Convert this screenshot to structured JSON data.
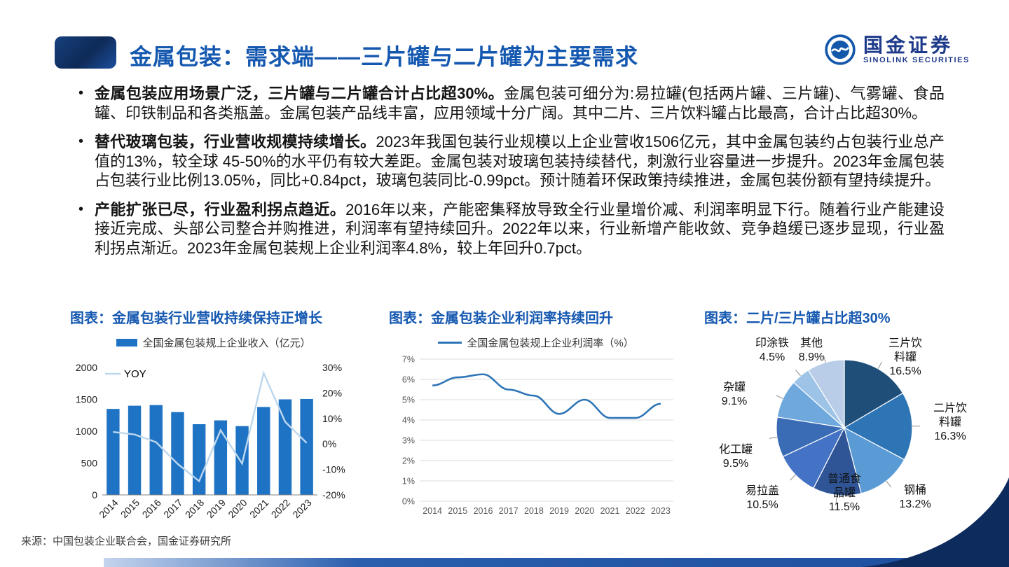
{
  "header": {
    "title": "金属包装：需求端——三片罐与二片罐为主要需求",
    "logo_text": "国金证券",
    "logo_subtext": "SINOLINK SECURITIES"
  },
  "colors": {
    "title_blue": "#1558B0",
    "logo_navy": "#1E3A8A",
    "bar_blue": "#1E73C4",
    "yoy_line": "#BDD7EE",
    "profit_line": "#2E75B6",
    "footer_navy": "#0E2B5D"
  },
  "bullets": [
    {
      "bold": "金属包装应用场景广泛，三片罐与二片罐合计占比超30%。",
      "text": "金属包装可细分为:易拉罐(包括两片罐、三片罐)、气雾罐、食品罐、印铁制品和各类瓶盖。金属包装产品线丰富，应用领域十分广阔。其中二片、三片饮料罐占比最高，合计占比超30%。"
    },
    {
      "bold": "替代玻璃包装，行业营收规模持续增长。",
      "text": "2023年我国包装行业规模以上企业营收1506亿元，其中金属包装约占包装行业总产值的13%，较全球 45-50%的水平仍有较大差距。金属包装对玻璃包装持续替代，刺激行业容量进一步提升。2023年金属包装占包装行业比例13.05%，同比+0.84pct，玻璃包装同比-0.99pct。预计随着环保政策持续推进，金属包装份额有望持续提升。"
    },
    {
      "bold": "产能扩张已尽，行业盈利拐点趋近。",
      "text": "2016年以来，产能密集释放导致全行业量增价减、利润率明显下行。随着行业产能建设接近完成、头部公司整合并购推进，利润率有望持续回升。2022年以来，行业新增产能收敛、竞争趋缓已逐步显现，行业盈利拐点渐近。2023年金属包装规上企业利润率4.8%，较上年回升0.7pct。"
    }
  ],
  "chart_data": [
    {
      "type": "bar",
      "title": "图表：金属包装行业营收持续保持正增长",
      "categories": [
        "2014",
        "2015",
        "2016",
        "2017",
        "2018",
        "2019",
        "2020",
        "2021",
        "2022",
        "2023"
      ],
      "bar_series": {
        "name": "全国金属包装规上企业收入（亿元）",
        "values": [
          1350,
          1400,
          1410,
          1300,
          1110,
          1170,
          1080,
          1380,
          1500,
          1506
        ]
      },
      "line_series": {
        "name": "YOY",
        "values": [
          4.7,
          3.7,
          0.7,
          -7.8,
          -14.6,
          5.4,
          -7.7,
          27.8,
          8.7,
          0.4
        ]
      },
      "left_axis": {
        "min": 0,
        "max": 2000,
        "ticks": [
          0,
          500,
          1000,
          1500,
          2000
        ]
      },
      "right_axis": {
        "min": -20,
        "max": 30,
        "ticks": [
          -20,
          -10,
          0,
          10,
          20,
          30
        ]
      },
      "colors": {
        "bar": "#1E73C4",
        "line": "#BDD7EE"
      },
      "legend_position": "top"
    },
    {
      "type": "line",
      "title": "图表：金属包装企业利润率持续回升",
      "legend": "全国金属包装规上企业利润率（%）",
      "x": [
        "2014",
        "2015",
        "2016",
        "2017",
        "2018",
        "2019",
        "2020",
        "2021",
        "2022",
        "2023"
      ],
      "values": [
        5.7,
        6.1,
        6.25,
        5.5,
        5.2,
        4.3,
        5.0,
        4.1,
        4.1,
        4.8
      ],
      "ylim": [
        0,
        7
      ],
      "ytick_labels": [
        "0%",
        "1%",
        "2%",
        "3%",
        "4%",
        "5%",
        "6%",
        "7%"
      ],
      "grid": true,
      "color": "#2E75B6",
      "legend_position": "top"
    },
    {
      "type": "pie",
      "title": "图表：二片/三片罐占比超30%",
      "slices": [
        {
          "label": "三片饮料罐",
          "value": 16.5,
          "color": "#1F4E79"
        },
        {
          "label": "二片饮料罐",
          "value": 16.3,
          "color": "#2E75B6"
        },
        {
          "label": "钢桶",
          "value": 13.2,
          "color": "#5B9BD5"
        },
        {
          "label": "普通食品罐",
          "value": 11.5,
          "color": "#2F5597"
        },
        {
          "label": "易拉盖",
          "value": 10.5,
          "color": "#4472C4"
        },
        {
          "label": "化工罐",
          "value": 9.5,
          "color": "#3A6BB5"
        },
        {
          "label": "杂罐",
          "value": 9.1,
          "color": "#6FA8DC"
        },
        {
          "label": "印涂铁",
          "value": 4.5,
          "color": "#9DC3E6"
        },
        {
          "label": "其他",
          "value": 8.9,
          "color": "#B9CDE8"
        }
      ]
    }
  ],
  "footer": {
    "source": "来源：中国包装企业联合会，国金证券研究所"
  }
}
